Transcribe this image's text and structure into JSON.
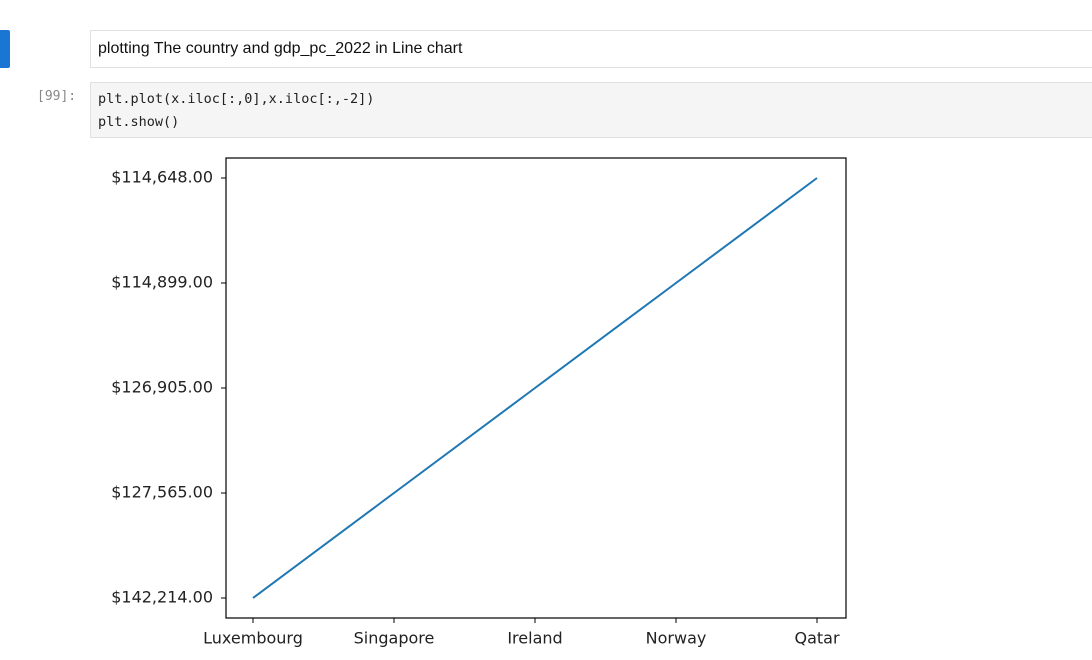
{
  "notebook": {
    "markdown": "plotting The country and gdp_pc_2022 in Line chart",
    "prompt": "[99]:",
    "code": [
      "plt.plot(x.iloc[:,0],x.iloc[:,-2])",
      "plt.show()"
    ]
  },
  "chart_data": {
    "type": "line",
    "categories": [
      "Luxembourg",
      "Singapore",
      "Ireland",
      "Norway",
      "Qatar"
    ],
    "y_categories": [
      "$142,214.00",
      "$127,565.00",
      "$126,905.00",
      "$114,899.00",
      "$114,648.00"
    ],
    "series": [
      {
        "color": "#1f77b4",
        "values": [
          "$142,214.00",
          "$127,565.00",
          "$126,905.00",
          "$114,899.00",
          "$114,648.00"
        ]
      }
    ]
  }
}
